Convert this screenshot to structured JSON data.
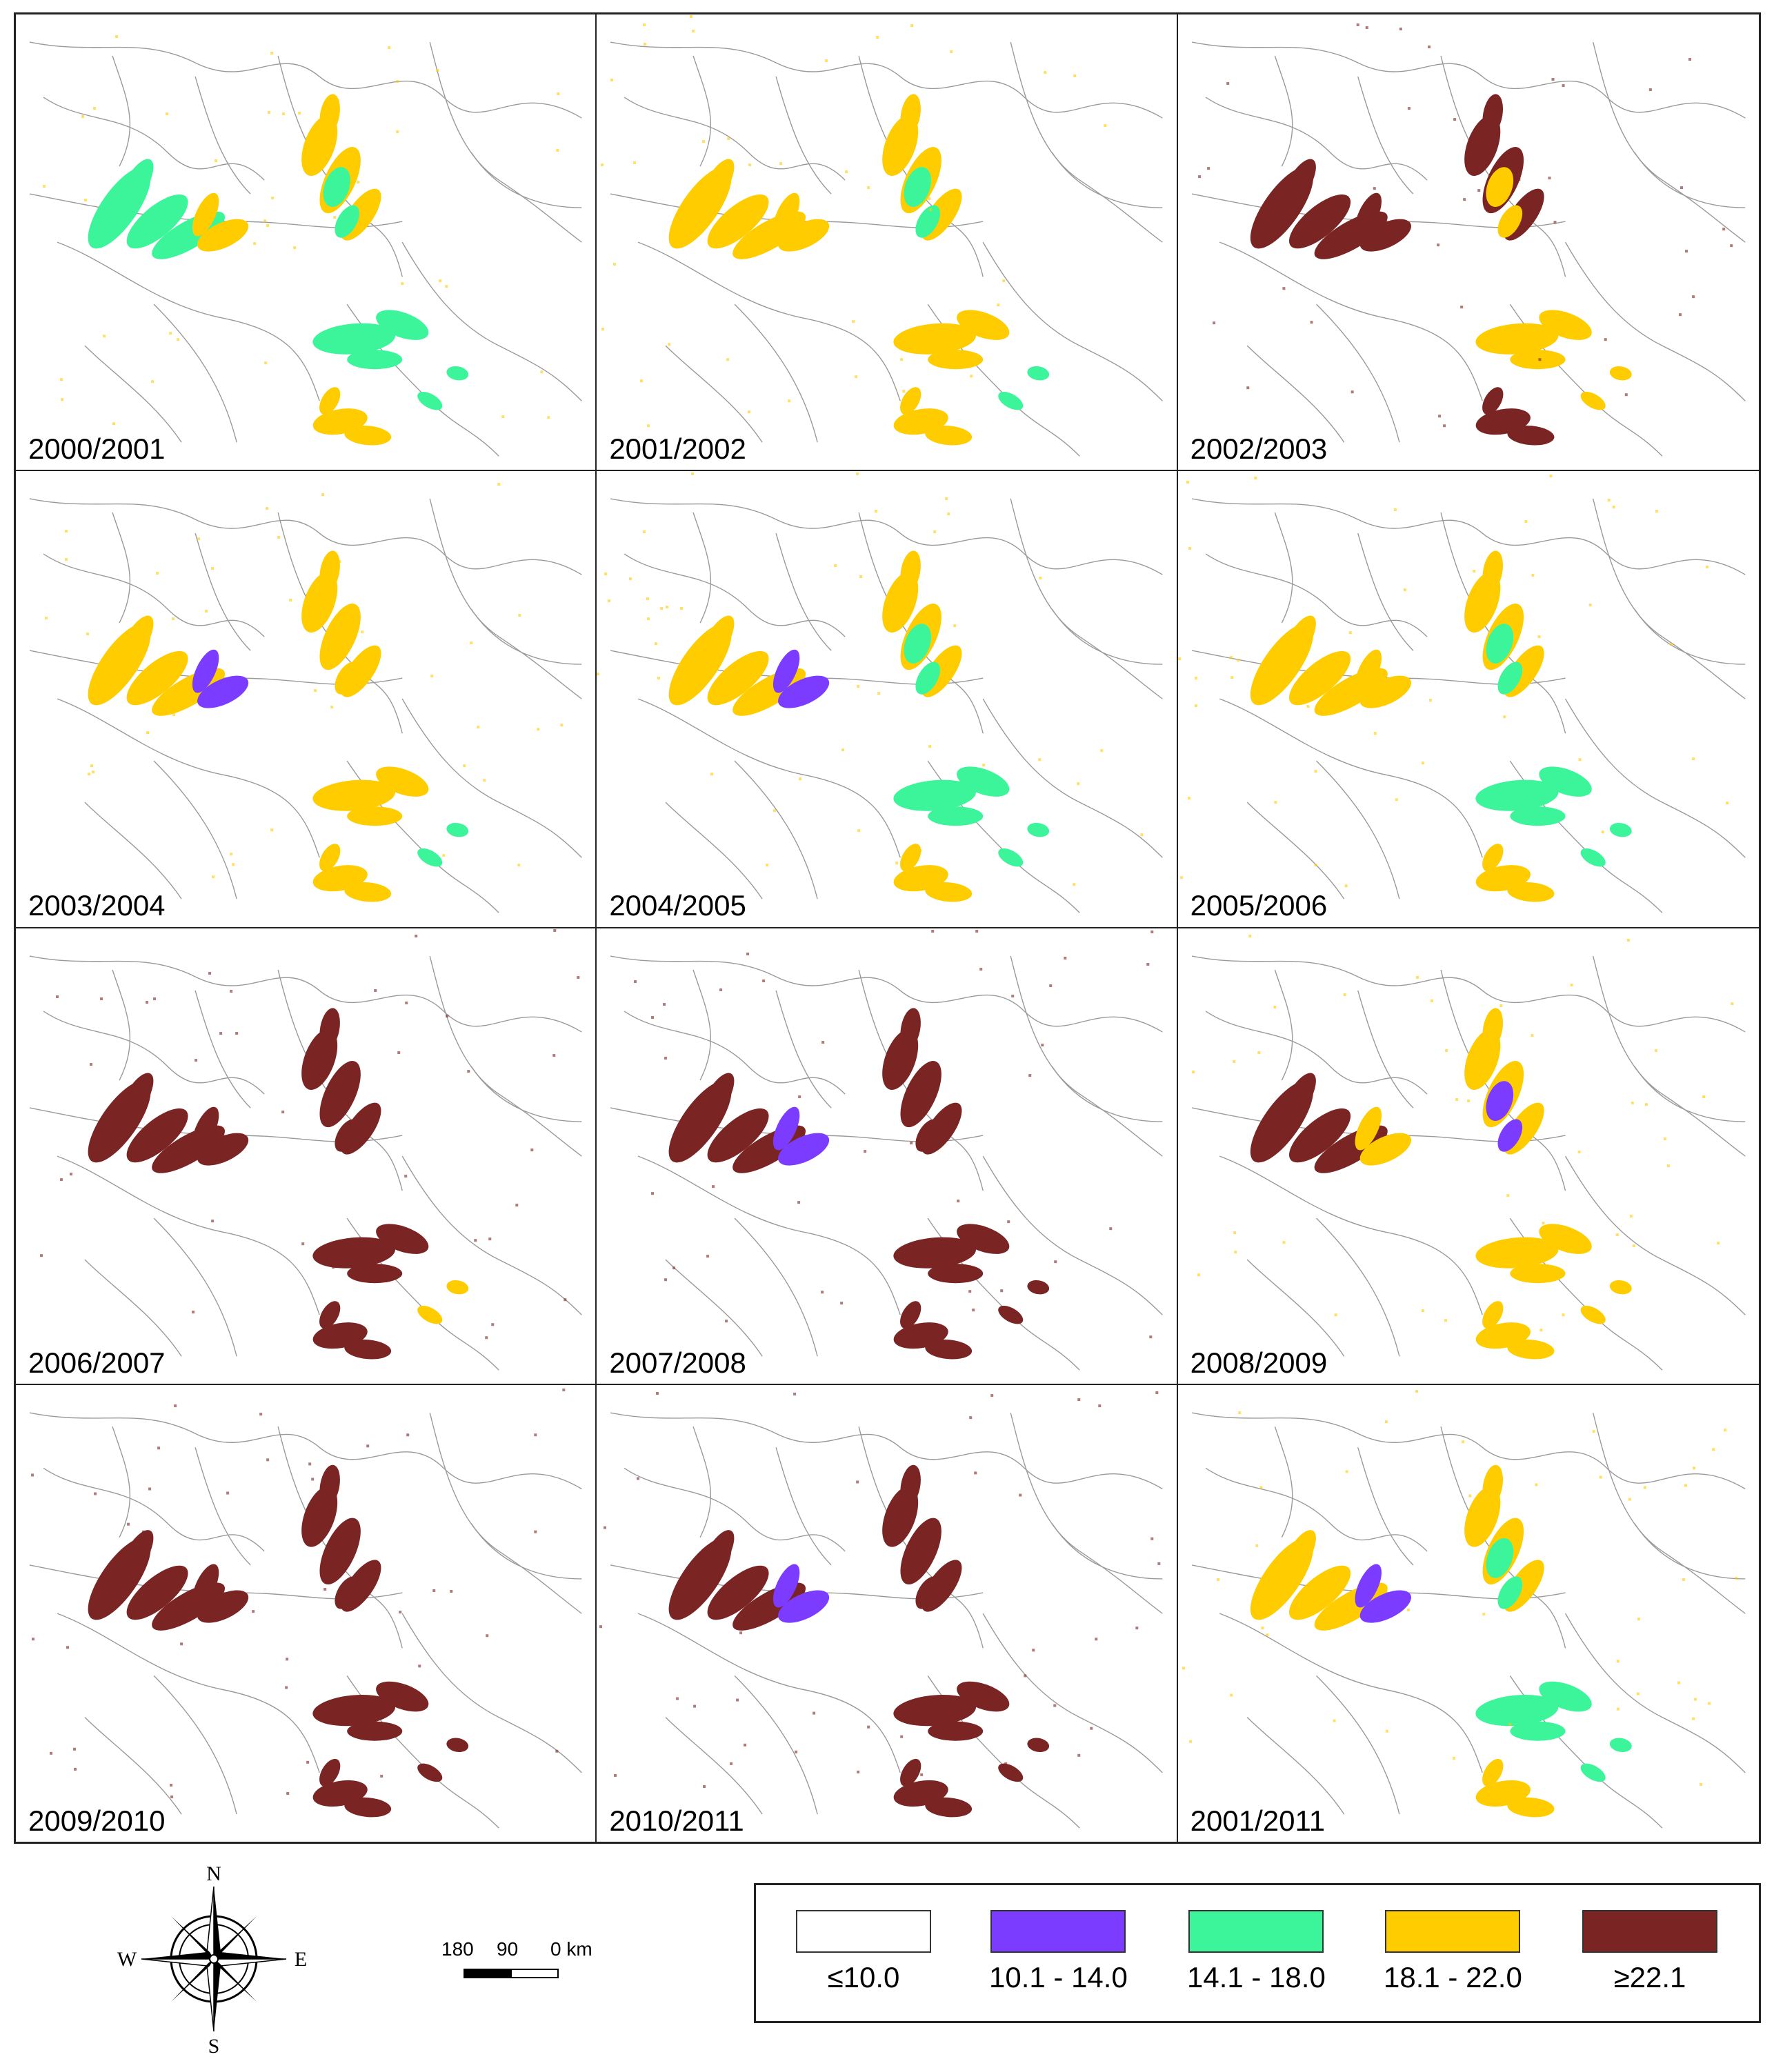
{
  "title": "",
  "colors": {
    "c1": "#ffffff",
    "c2": "#7b3cff",
    "c3": "#3cf59a",
    "c4": "#ffcc00",
    "c5": "#7a2424",
    "boundary": "#9a9a9a"
  },
  "panels": [
    {
      "label": "2000/2001",
      "scheme": "mixed_green"
    },
    {
      "label": "2001/2002",
      "scheme": "mostly_yellow"
    },
    {
      "label": "2002/2003",
      "scheme": "maroon_west"
    },
    {
      "label": "2003/2004",
      "scheme": "yellow_purple"
    },
    {
      "label": "2004/2005",
      "scheme": "yellow_purple_green"
    },
    {
      "label": "2005/2006",
      "scheme": "yellow_green"
    },
    {
      "label": "2006/2007",
      "scheme": "maroon"
    },
    {
      "label": "2007/2008",
      "scheme": "maroon_purple"
    },
    {
      "label": "2008/2009",
      "scheme": "mixed_purple_center"
    },
    {
      "label": "2009/2010",
      "scheme": "maroon_dense"
    },
    {
      "label": "2010/2011",
      "scheme": "maroon_purple"
    },
    {
      "label": "2001/2011",
      "scheme": "yellow_purple_green"
    }
  ],
  "compass": {
    "north": "N",
    "south": "S",
    "east": "E",
    "west": "W",
    "icon": "compass-rose-icon"
  },
  "scale_bar": {
    "label_left": "180",
    "label_mid": "90",
    "label_right": "0 km"
  },
  "legend": {
    "items": [
      {
        "label": "≤10.0",
        "color": "#ffffff"
      },
      {
        "label": "10.1 - 14.0",
        "color": "#7b3cff"
      },
      {
        "label": "14.1 - 18.0",
        "color": "#3cf59a"
      },
      {
        "label": "18.1 - 22.0",
        "color": "#ffcc00"
      },
      {
        "label": "≥22.1",
        "color": "#7a2424"
      }
    ]
  }
}
